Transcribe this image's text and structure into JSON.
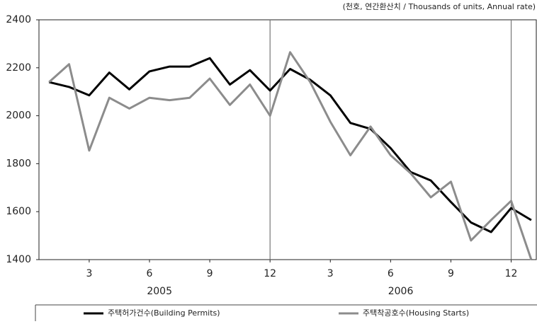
{
  "chart_data": {
    "type": "line",
    "unit_note": "(천호, 연간환산치 / Thousands of units, Annual rate)",
    "x": [
      1,
      2,
      3,
      4,
      5,
      6,
      7,
      8,
      9,
      10,
      11,
      12,
      13,
      14,
      15,
      16,
      17,
      18,
      19,
      20,
      21,
      22,
      23,
      24,
      25
    ],
    "xlim": [
      0.5,
      25.25
    ],
    "xticks": [
      3,
      6,
      9,
      12,
      {
        "value": 15,
        "label": "3"
      },
      {
        "value": 18,
        "label": "6"
      },
      {
        "value": 21,
        "label": "9"
      },
      {
        "value": 24,
        "label": "12"
      }
    ],
    "year_labels": [
      "2005",
      "2006"
    ],
    "vlines": [
      12,
      24
    ],
    "ylim": [
      1400,
      2400
    ],
    "yticks": [
      1400,
      1600,
      1800,
      2000,
      2200,
      2400
    ],
    "series": [
      {
        "name": "주택허가건수(Building Permits)",
        "color": "#000000",
        "values": [
          2140,
          2120,
          2085,
          2180,
          2110,
          2185,
          2205,
          2205,
          2240,
          2130,
          2190,
          2105,
          2195,
          2150,
          2085,
          1970,
          1945,
          1865,
          1765,
          1730,
          1640,
          1555,
          1515,
          1615,
          1565
        ]
      },
      {
        "name": "주택착공호수(Housing Starts)",
        "color": "#8c8c8c",
        "values": [
          2140,
          2215,
          1855,
          2075,
          2030,
          2075,
          2065,
          2075,
          2155,
          2045,
          2130,
          2000,
          2265,
          2140,
          1975,
          1835,
          1955,
          1835,
          1760,
          1660,
          1725,
          1480,
          1565,
          1645,
          1400
        ]
      }
    ]
  }
}
